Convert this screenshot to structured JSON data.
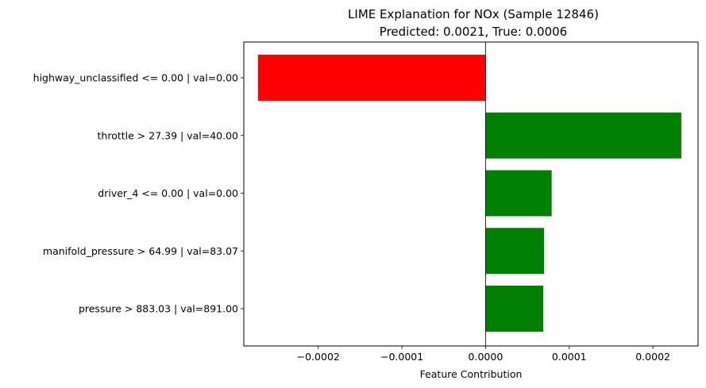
{
  "chart_data": {
    "type": "bar",
    "orientation": "horizontal",
    "title": "LIME Explanation for NOx (Sample 12846)",
    "subtitle": "Predicted: 0.0021, True: 0.0006",
    "xlabel": "Feature Contribution",
    "ylabel": "",
    "xlim": [
      -0.000289,
      0.000254
    ],
    "xticks": [
      {
        "value": -0.0002,
        "label": "−0.0002"
      },
      {
        "value": -0.0001,
        "label": "−0.0001"
      },
      {
        "value": 0,
        "label": "0.0000"
      },
      {
        "value": 0.0001,
        "label": "0.0001"
      },
      {
        "value": 0.0002,
        "label": "0.0002"
      }
    ],
    "categories": [
      "highway_unclassified <= 0.00 | val=0.00",
      "throttle > 27.39 | val=40.00",
      "driver_4 <= 0.00 | val=0.00",
      "manifold_pressure > 64.99 | val=83.07",
      "pressure > 883.03 | val=891.00"
    ],
    "values": [
      -0.000272,
      0.000234,
      7.9e-05,
      7e-05,
      6.9e-05
    ],
    "colors": {
      "positive": "#008000",
      "negative": "#ff0000"
    },
    "grid": false,
    "legend": "none"
  }
}
